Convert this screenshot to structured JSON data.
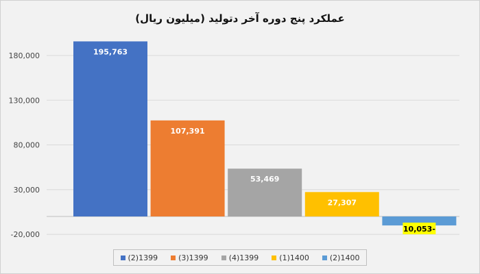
{
  "chart_data": {
    "type": "bar",
    "title": "عملکرد پنج دوره آخر دتولید (میلیون ریال)",
    "categories": [
      "(2)1399",
      "(3)1399",
      "(4)1399",
      "(1)1400",
      "(2)1400"
    ],
    "values": [
      195763,
      107391,
      53469,
      27307,
      -10053
    ],
    "data_labels": [
      "195,763",
      "107,391",
      "53,469",
      "27,307",
      "10,053-"
    ],
    "colors": [
      "#4472c4",
      "#ed7d31",
      "#a5a5a5",
      "#ffc000",
      "#5b9bd5"
    ],
    "y_ticks": [
      180000,
      130000,
      80000,
      30000,
      -20000
    ],
    "y_tick_labels": [
      "180,000",
      "130,000",
      "80,000",
      "30,000",
      "-20,000"
    ],
    "ylim": [
      -20000,
      180000
    ],
    "grid": true,
    "legend": "bottom"
  }
}
